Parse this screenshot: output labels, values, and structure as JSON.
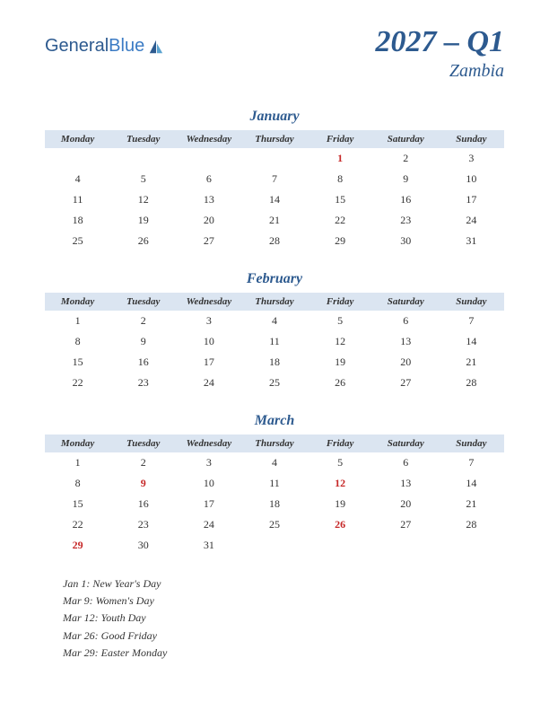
{
  "logo": {
    "part1": "General",
    "part2": "Blue"
  },
  "title": "2027 – Q1",
  "subtitle": "Zambia",
  "day_headers": [
    "Monday",
    "Tuesday",
    "Wednesday",
    "Thursday",
    "Friday",
    "Saturday",
    "Sunday"
  ],
  "colors": {
    "header_bg": "#dbe5f1",
    "brand": "#2d5a8f",
    "holiday": "#c62828",
    "text": "#333333",
    "background": "#ffffff"
  },
  "months": [
    {
      "name": "January",
      "weeks": [
        [
          "",
          "",
          "",
          "",
          "1",
          "2",
          "3"
        ],
        [
          "4",
          "5",
          "6",
          "7",
          "8",
          "9",
          "10"
        ],
        [
          "11",
          "12",
          "13",
          "14",
          "15",
          "16",
          "17"
        ],
        [
          "18",
          "19",
          "20",
          "21",
          "22",
          "23",
          "24"
        ],
        [
          "25",
          "26",
          "27",
          "28",
          "29",
          "30",
          "31"
        ]
      ],
      "holidays": [
        "1"
      ]
    },
    {
      "name": "February",
      "weeks": [
        [
          "1",
          "2",
          "3",
          "4",
          "5",
          "6",
          "7"
        ],
        [
          "8",
          "9",
          "10",
          "11",
          "12",
          "13",
          "14"
        ],
        [
          "15",
          "16",
          "17",
          "18",
          "19",
          "20",
          "21"
        ],
        [
          "22",
          "23",
          "24",
          "25",
          "26",
          "27",
          "28"
        ]
      ],
      "holidays": []
    },
    {
      "name": "March",
      "weeks": [
        [
          "1",
          "2",
          "3",
          "4",
          "5",
          "6",
          "7"
        ],
        [
          "8",
          "9",
          "10",
          "11",
          "12",
          "13",
          "14"
        ],
        [
          "15",
          "16",
          "17",
          "18",
          "19",
          "20",
          "21"
        ],
        [
          "22",
          "23",
          "24",
          "25",
          "26",
          "27",
          "28"
        ],
        [
          "29",
          "30",
          "31",
          "",
          "",
          "",
          ""
        ]
      ],
      "holidays": [
        "9",
        "12",
        "26",
        "29"
      ]
    }
  ],
  "holiday_notes": [
    "Jan 1: New Year's Day",
    "Mar 9: Women's Day",
    "Mar 12: Youth Day",
    "Mar 26: Good Friday",
    "Mar 29: Easter Monday"
  ]
}
